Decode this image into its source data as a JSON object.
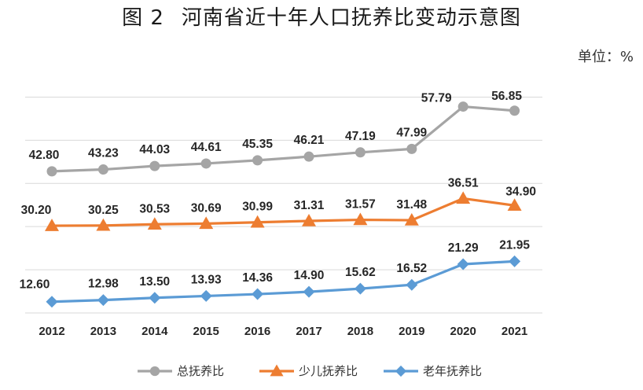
{
  "title": {
    "number": "图 2",
    "text": "河南省近十年人口抚养比变动示意图"
  },
  "unit_label": "单位：%",
  "chart_data": {
    "type": "line",
    "title": "图 2 河南省近十年人口抚养比变动示意图",
    "xlabel": "",
    "ylabel": "",
    "unit": "%",
    "categories": [
      "2012",
      "2013",
      "2014",
      "2015",
      "2016",
      "2017",
      "2018",
      "2019",
      "2020",
      "2021"
    ],
    "ylim": [
      10,
      65
    ],
    "grid": true,
    "legend_position": "bottom",
    "series": [
      {
        "name": "总抚养比",
        "color": "#A5A5A5",
        "marker": "circle",
        "values": [
          42.8,
          43.23,
          44.03,
          44.61,
          45.35,
          46.21,
          47.19,
          47.99,
          57.79,
          56.85
        ],
        "labels": [
          "42.80",
          "43.23",
          "44.03",
          "44.61",
          "45.35",
          "46.21",
          "47.19",
          "47.99",
          "57.79",
          "56.85"
        ]
      },
      {
        "name": "少儿抚养比",
        "color": "#ED7D31",
        "marker": "triangle",
        "values": [
          30.2,
          30.25,
          30.53,
          30.69,
          30.99,
          31.31,
          31.57,
          31.48,
          36.51,
          34.9
        ],
        "labels": [
          "30.20",
          "30.25",
          "30.53",
          "30.69",
          "30.99",
          "31.31",
          "31.57",
          "31.48",
          "36.51",
          "34.90"
        ]
      },
      {
        "name": "老年抚养比",
        "color": "#5B9BD5",
        "marker": "diamond",
        "values": [
          12.6,
          12.98,
          13.5,
          13.93,
          14.36,
          14.9,
          15.62,
          16.52,
          21.29,
          21.95
        ],
        "labels": [
          "12.60",
          "12.98",
          "13.50",
          "13.93",
          "14.36",
          "14.90",
          "15.62",
          "16.52",
          "21.29",
          "21.95"
        ]
      }
    ]
  }
}
